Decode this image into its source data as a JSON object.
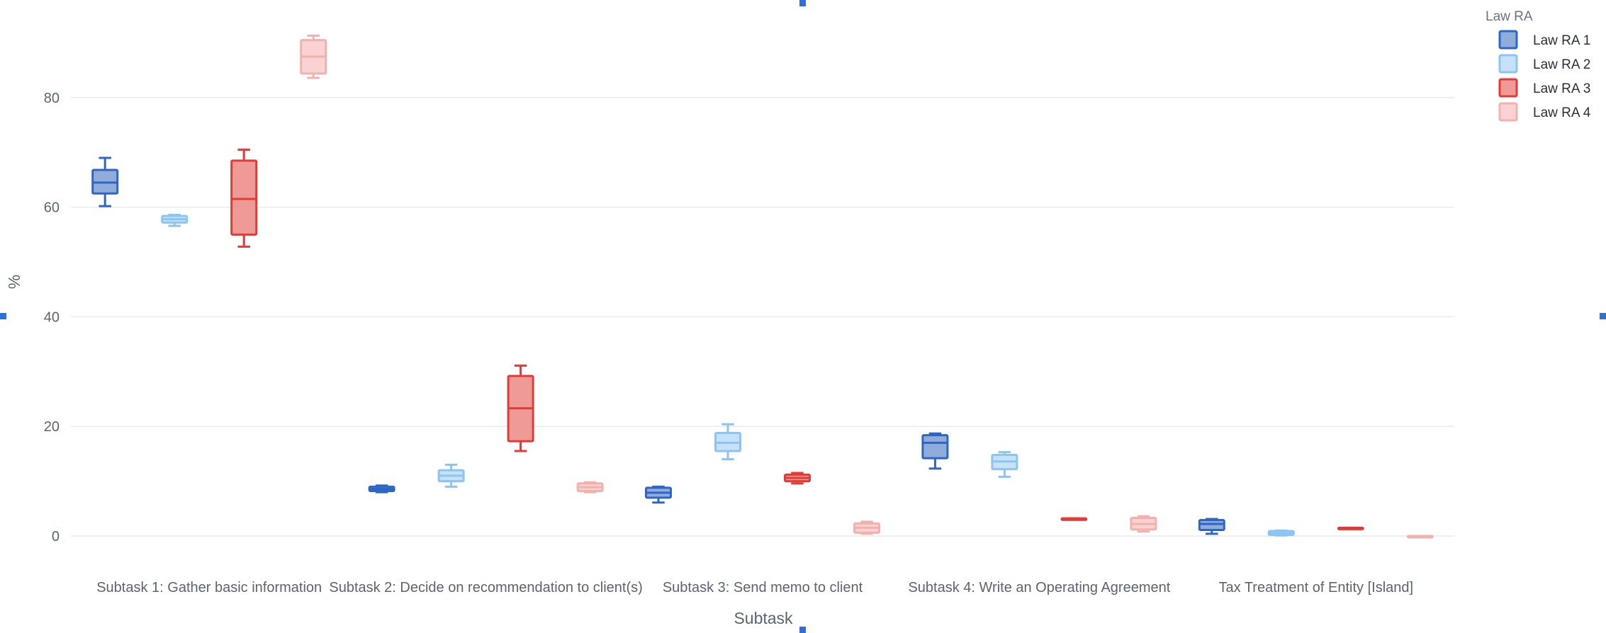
{
  "chart_data": {
    "type": "box",
    "title": "",
    "xlabel": "Subtask",
    "ylabel": "%",
    "ylim": [
      0,
      92
    ],
    "yticks": [
      0,
      20,
      40,
      60,
      80
    ],
    "grid": true,
    "legend_title": "Law RA",
    "legend_position": "top-right",
    "categories": [
      "Subtask 1: Gather basic information",
      "Subtask 2:  Decide on recommendation to client(s)",
      "Subtask 3: Send memo to client",
      "Subtask 4: Write an Operating Agreement",
      "Tax Treatment of Entity [Island]"
    ],
    "series": [
      {
        "name": "Law RA 1",
        "stroke": "#2f66c4",
        "fill": "#8facda",
        "boxes": [
          {
            "min": 60.2,
            "q1": 62.5,
            "median": 64.5,
            "q3": 66.8,
            "max": 69.0
          },
          {
            "min": 8.0,
            "q1": 8.2,
            "median": 8.6,
            "q3": 9.0,
            "max": 9.2
          },
          {
            "min": 6.1,
            "q1": 7.0,
            "median": 7.9,
            "q3": 8.8,
            "max": 9.0
          },
          {
            "min": 12.3,
            "q1": 14.2,
            "median": 17.0,
            "q3": 18.4,
            "max": 18.7
          },
          {
            "min": 0.4,
            "q1": 1.1,
            "median": 2.2,
            "q3": 2.9,
            "max": 3.1
          }
        ]
      },
      {
        "name": "Law RA 2",
        "stroke": "#8cc4f3",
        "fill": "#c7e2f8",
        "boxes": [
          {
            "min": 56.6,
            "q1": 57.2,
            "median": 57.8,
            "q3": 58.4,
            "max": 58.6
          },
          {
            "min": 9.0,
            "q1": 10.0,
            "median": 11.0,
            "q3": 12.0,
            "max": 13.0
          },
          {
            "min": 14.0,
            "q1": 15.5,
            "median": 17.0,
            "q3": 18.8,
            "max": 20.4
          },
          {
            "min": 10.8,
            "q1": 12.2,
            "median": 13.6,
            "q3": 14.8,
            "max": 15.3
          },
          {
            "min": 0.1,
            "q1": 0.2,
            "median": 0.5,
            "q3": 0.9,
            "max": 1.0
          }
        ]
      },
      {
        "name": "Law RA 3",
        "stroke": "#e23b36",
        "fill": "#ee9b97",
        "boxes": [
          {
            "min": 52.8,
            "q1": 55.0,
            "median": 61.5,
            "q3": 68.5,
            "max": 70.5
          },
          {
            "min": 15.5,
            "q1": 17.3,
            "median": 23.3,
            "q3": 29.2,
            "max": 31.1
          },
          {
            "min": 9.6,
            "q1": 10.0,
            "median": 10.6,
            "q3": 11.2,
            "max": 11.5
          },
          {
            "min": 3.2,
            "q1": 3.2,
            "median": 3.2,
            "q3": 3.2,
            "max": 3.2
          },
          {
            "min": 1.3,
            "q1": 1.3,
            "median": 1.4,
            "q3": 1.5,
            "max": 1.5
          }
        ]
      },
      {
        "name": "Law RA 4",
        "stroke": "#f3b1ae",
        "fill": "#f8d3d1",
        "boxes": [
          {
            "min": 83.6,
            "q1": 84.4,
            "median": 87.5,
            "q3": 90.5,
            "max": 91.3
          },
          {
            "min": 8.0,
            "q1": 8.2,
            "median": 8.9,
            "q3": 9.6,
            "max": 9.8
          },
          {
            "min": 0.4,
            "q1": 0.6,
            "median": 1.5,
            "q3": 2.3,
            "max": 2.6
          },
          {
            "min": 0.8,
            "q1": 1.2,
            "median": 2.2,
            "q3": 3.3,
            "max": 3.6
          },
          {
            "min": 0.0,
            "q1": 0.0,
            "median": 0.0,
            "q3": 0.0,
            "max": 0.0
          }
        ]
      }
    ]
  }
}
